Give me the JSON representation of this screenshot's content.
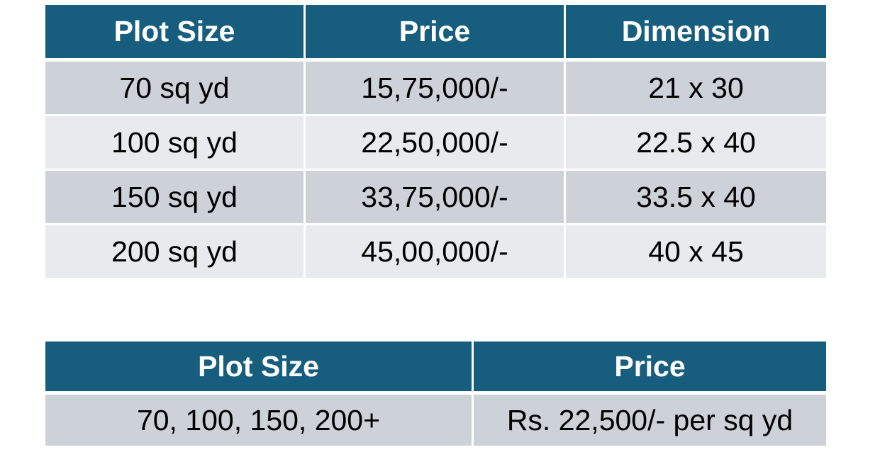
{
  "plot_table": {
    "headers": [
      "Plot Size",
      "Price",
      "Dimension"
    ],
    "rows": [
      [
        "70 sq yd",
        "15,75,000/-",
        "21 x 30"
      ],
      [
        "100 sq yd",
        "22,50,000/-",
        "22.5 x 40"
      ],
      [
        "150 sq yd",
        "33,75,000/-",
        "33.5 x 40"
      ],
      [
        "200 sq yd",
        "45,00,000/-",
        "40 x 45"
      ]
    ]
  },
  "rate_table": {
    "headers": [
      "Plot Size",
      "Price"
    ],
    "rows": [
      [
        "70, 100, 150, 200+",
        "Rs. 22,500/- per sq yd"
      ]
    ]
  },
  "colors": {
    "header_bg": "#175e7e",
    "header_text": "#ffffff",
    "row_odd_bg": "#cdd2d9",
    "row_even_bg": "#e8eaee"
  }
}
